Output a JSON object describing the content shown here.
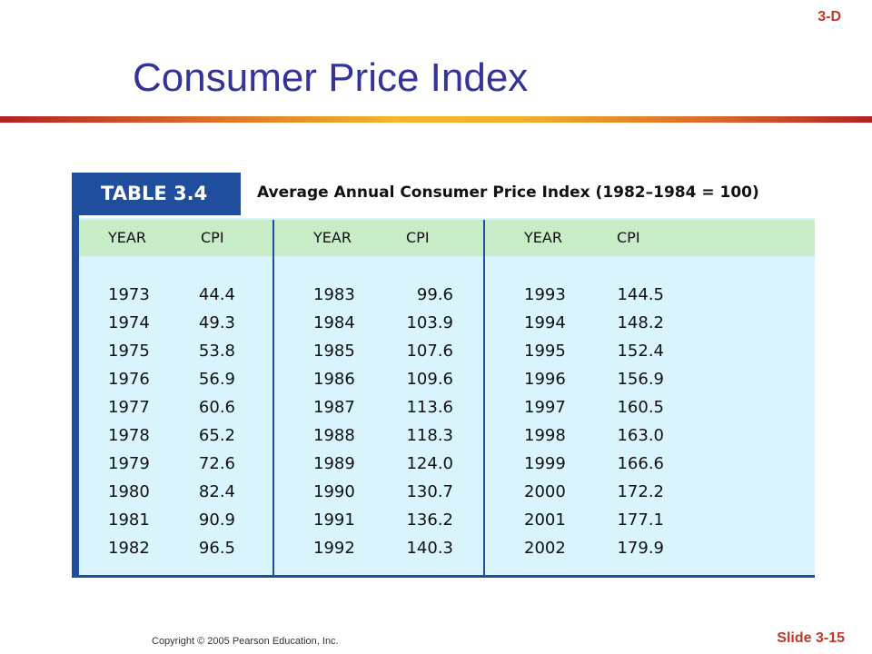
{
  "slide": {
    "code": "3-D",
    "title": "Consumer Price Index",
    "copyright": "Copyright © 2005 Pearson Education, Inc.",
    "slide_number": "Slide 3-15"
  },
  "table": {
    "label": "TABLE 3.4",
    "caption": "Average Annual Consumer Price Index (1982–1984 = 100)",
    "column_headers": [
      "YEAR",
      "CPI"
    ],
    "columns": [
      {
        "rows": [
          {
            "year": "1973",
            "cpi": "44.4"
          },
          {
            "year": "1974",
            "cpi": "49.3"
          },
          {
            "year": "1975",
            "cpi": "53.8"
          },
          {
            "year": "1976",
            "cpi": "56.9"
          },
          {
            "year": "1977",
            "cpi": "60.6"
          },
          {
            "year": "1978",
            "cpi": "65.2"
          },
          {
            "year": "1979",
            "cpi": "72.6"
          },
          {
            "year": "1980",
            "cpi": "82.4"
          },
          {
            "year": "1981",
            "cpi": "90.9"
          },
          {
            "year": "1982",
            "cpi": "96.5"
          }
        ]
      },
      {
        "rows": [
          {
            "year": "1983",
            "cpi": "99.6"
          },
          {
            "year": "1984",
            "cpi": "103.9"
          },
          {
            "year": "1985",
            "cpi": "107.6"
          },
          {
            "year": "1986",
            "cpi": "109.6"
          },
          {
            "year": "1987",
            "cpi": "113.6"
          },
          {
            "year": "1988",
            "cpi": "118.3"
          },
          {
            "year": "1989",
            "cpi": "124.0"
          },
          {
            "year": "1990",
            "cpi": "130.7"
          },
          {
            "year": "1991",
            "cpi": "136.2"
          },
          {
            "year": "1992",
            "cpi": "140.3"
          }
        ]
      },
      {
        "rows": [
          {
            "year": "1993",
            "cpi": "144.5"
          },
          {
            "year": "1994",
            "cpi": "148.2"
          },
          {
            "year": "1995",
            "cpi": "152.4"
          },
          {
            "year": "1996",
            "cpi": "156.9"
          },
          {
            "year": "1997",
            "cpi": "160.5"
          },
          {
            "year": "1998",
            "cpi": "163.0"
          },
          {
            "year": "1999",
            "cpi": "166.6"
          },
          {
            "year": "2000",
            "cpi": "172.2"
          },
          {
            "year": "2001",
            "cpi": "177.1"
          },
          {
            "year": "2002",
            "cpi": "179.9"
          }
        ]
      }
    ]
  },
  "colors": {
    "title": "#333399",
    "accent": "#c0392b",
    "table_blue": "#1f4e9c",
    "header_green": "#c8ecc8",
    "body_cyan": "#d9f4fc"
  }
}
